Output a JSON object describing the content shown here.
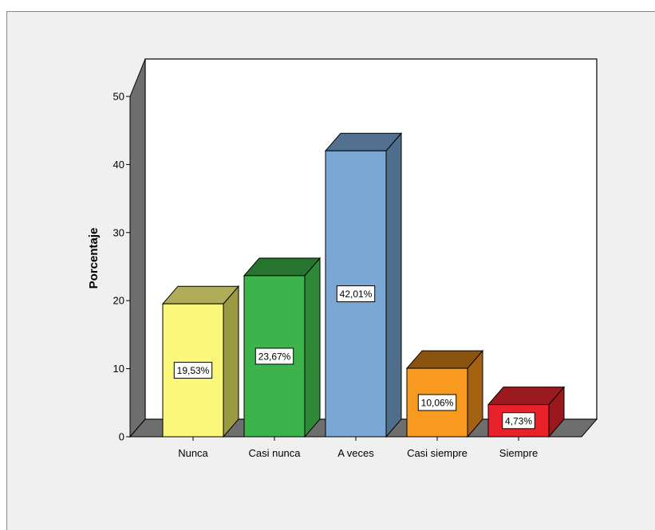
{
  "chart_data": {
    "type": "bar",
    "style": "3d",
    "title": "",
    "xlabel": "",
    "ylabel": "Porcentaje",
    "ylim": [
      0,
      50
    ],
    "yticks": [
      0,
      10,
      20,
      30,
      40,
      50
    ],
    "grid": false,
    "legend": "none",
    "categories": [
      "Nunca",
      "Casi nunca",
      "A veces",
      "Casi siempre",
      "Siempre"
    ],
    "values": [
      19.53,
      23.67,
      42.01,
      10.06,
      4.73
    ],
    "data_labels": [
      "19,53%",
      "23,67%",
      "42,01%",
      "10,06%",
      "4,73%"
    ],
    "colors": [
      "#fbf77a",
      "#3cb44b",
      "#7ba7d4",
      "#f89a20",
      "#e8212b"
    ],
    "side_colors": [
      "#9a9a43",
      "#2f8a38",
      "#4e6e8c",
      "#a56112",
      "#9c161d"
    ],
    "top_colors": [
      "#b0ad58",
      "#27742f",
      "#52708f",
      "#8b540e",
      "#9a1a1f"
    ],
    "background_color": "#f0f0f0",
    "floor_color": "#6e6e6e",
    "wall_color": "#ffffff"
  }
}
